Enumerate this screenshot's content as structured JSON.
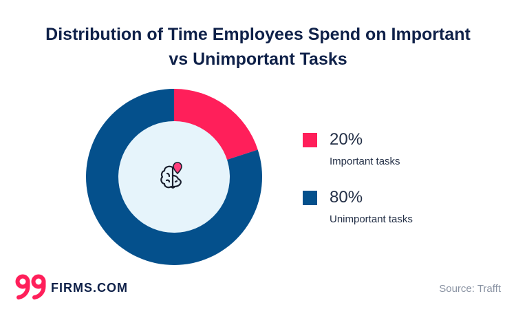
{
  "title": {
    "line1": "Distribution of Time Employees Spend on Important",
    "line2": "vs Unimportant Tasks"
  },
  "chart_data": {
    "type": "pie",
    "donut": true,
    "slices": [
      {
        "label": "Important tasks",
        "value": 20,
        "display": "20%",
        "color": "#ff1f5a"
      },
      {
        "label": "Unimportant tasks",
        "value": 80,
        "display": "80%",
        "color": "#04508c"
      }
    ],
    "center_icon": "brain-icon",
    "legend_position": "right"
  },
  "colors": {
    "title": "#0f2149",
    "important": "#ff1f5a",
    "unimportant": "#04508c",
    "center_fill": "#e6f4fb"
  },
  "brand": {
    "logo_mark": "99",
    "logo_text": "FIRMS.COM"
  },
  "source": "Source: Trafft"
}
